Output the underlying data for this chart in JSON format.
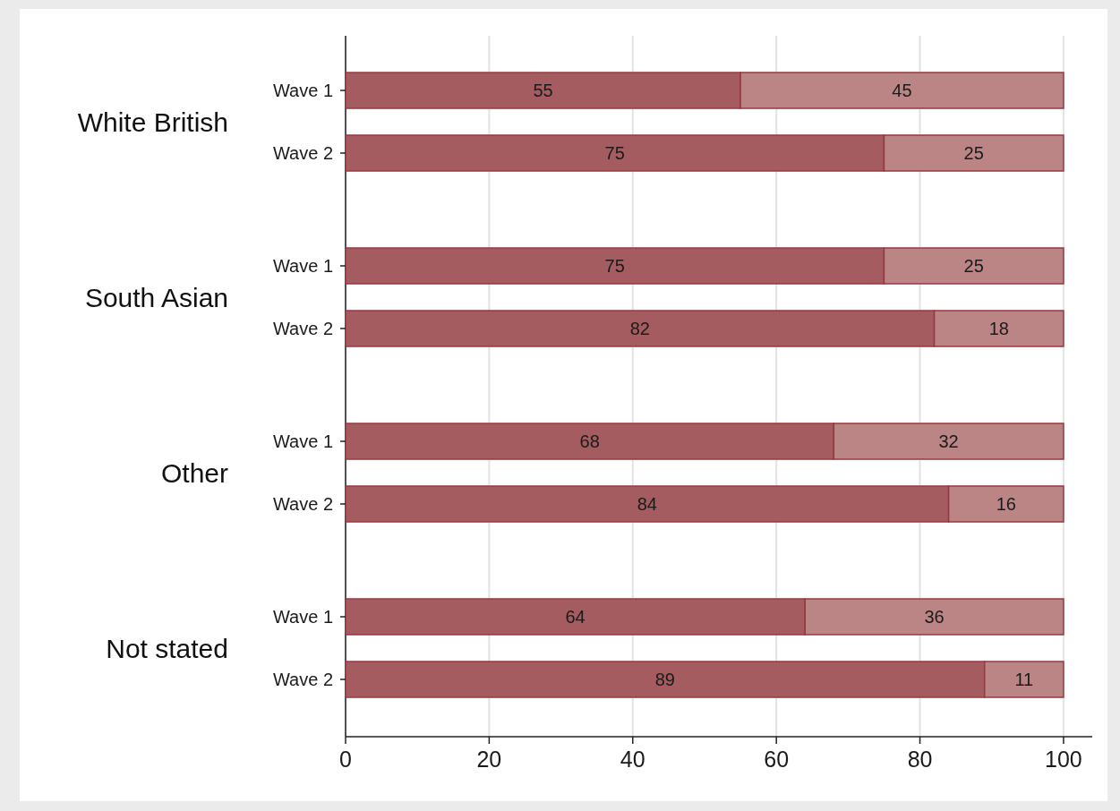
{
  "chart_data": {
    "type": "bar",
    "orientation": "horizontal",
    "stacked": true,
    "categories": [
      "Wave 1",
      "Wave 2",
      "Wave 1",
      "Wave 2",
      "Wave 1",
      "Wave 2",
      "Wave 1",
      "Wave 2"
    ],
    "series": [
      {
        "color": "#a45c60",
        "values": [
          55,
          75,
          75,
          82,
          68,
          84,
          64,
          89
        ]
      },
      {
        "color": "#bb8586",
        "values": [
          45,
          25,
          25,
          18,
          32,
          16,
          36,
          11
        ]
      }
    ],
    "annotations": [
      "White British",
      "South Asian",
      "Other",
      "Not stated"
    ],
    "xlim": [
      0,
      104
    ],
    "xticks": [
      0,
      20,
      40,
      60,
      80,
      100
    ],
    "grid": "x",
    "data_labels": true
  }
}
